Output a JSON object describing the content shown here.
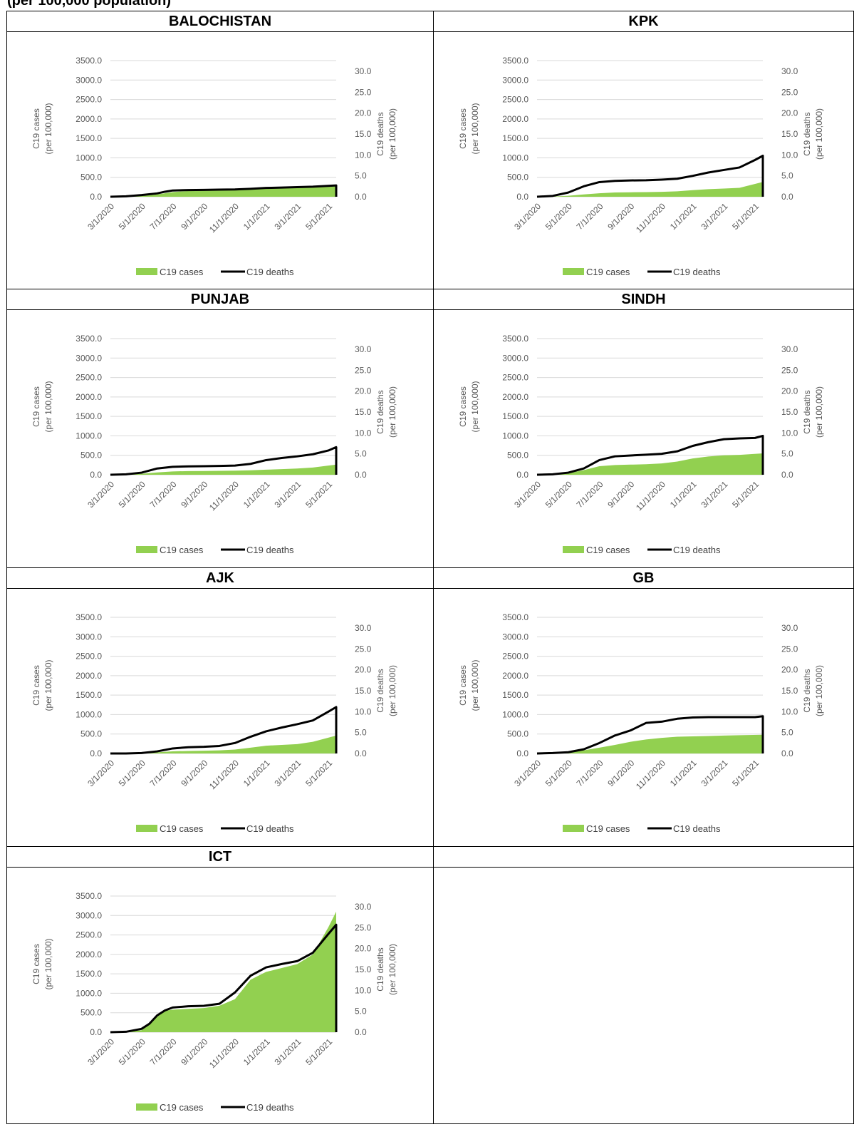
{
  "caption": "(per 100,000 population)",
  "colors": {
    "cases": "#92d050",
    "deaths": "#000000",
    "grid": "#d9d9d9"
  },
  "chart_data": [
    {
      "type": "area",
      "title": "BALOCHISTAN",
      "x_tick_labels": [
        "3/1/2020",
        "5/1/2020",
        "7/1/2020",
        "9/1/2020",
        "11/1/2020",
        "1/1/2021",
        "3/1/2021",
        "5/1/2021"
      ],
      "y_left": {
        "label": [
          "C19 cases",
          "(per 100,000)"
        ],
        "ticks": [
          "0.0",
          "500.0",
          "1000.0",
          "1500.0",
          "2000.0",
          "2500.0",
          "3000.0",
          "3500.0"
        ],
        "range": [
          0,
          3500
        ]
      },
      "y_right": {
        "label": [
          "C19 deaths",
          "(per 100,000)"
        ],
        "ticks": [
          "0.0",
          "5.0",
          "10.0",
          "15.0",
          "20.0",
          "25.0",
          "30.0"
        ],
        "range": [
          0,
          30
        ]
      },
      "legend": [
        "C19 cases",
        "C19 deaths"
      ],
      "series": [
        {
          "name": "C19 cases",
          "axis": "left",
          "x": [
            0,
            1,
            2,
            3,
            4,
            5,
            6,
            7,
            8,
            9,
            10,
            11,
            12,
            13,
            14.5
          ],
          "values": [
            0,
            5,
            20,
            60,
            120,
            150,
            160,
            165,
            175,
            190,
            210,
            225,
            240,
            265,
            300
          ]
        },
        {
          "name": "C19 deaths",
          "axis": "right",
          "x": [
            0,
            1,
            2,
            3,
            3.5,
            4,
            5,
            6,
            7,
            8,
            9,
            10,
            11,
            12,
            13,
            14.5
          ],
          "values": [
            0,
            0.1,
            0.4,
            0.8,
            1.2,
            1.5,
            1.6,
            1.65,
            1.7,
            1.75,
            1.9,
            2.1,
            2.2,
            2.3,
            2.4,
            2.7
          ]
        }
      ]
    },
    {
      "type": "area",
      "title": "KPK",
      "x_tick_labels": [
        "3/1/2020",
        "5/1/2020",
        "7/1/2020",
        "9/1/2020",
        "11/1/2020",
        "1/1/2021",
        "3/1/2021",
        "5/1/2021"
      ],
      "y_left": {
        "label": [
          "C19 cases",
          "(per 100,000)"
        ],
        "ticks": [
          "0.0",
          "500.0",
          "1000.0",
          "1500.0",
          "2000.0",
          "2500.0",
          "3000.0",
          "3500.0"
        ],
        "range": [
          0,
          3500
        ]
      },
      "y_right": {
        "label": [
          "C19 deaths",
          "(per 100,000)"
        ],
        "ticks": [
          "0.0",
          "5.0",
          "10.0",
          "15.0",
          "20.0",
          "25.0",
          "30.0"
        ],
        "range": [
          0,
          30
        ]
      },
      "legend": [
        "C19 cases",
        "C19 deaths"
      ],
      "series": [
        {
          "name": "C19 cases",
          "axis": "left",
          "x": [
            0,
            1,
            2,
            3,
            4,
            5,
            6,
            7,
            8,
            9,
            10,
            11,
            12,
            13,
            14.5
          ],
          "values": [
            0,
            5,
            25,
            60,
            90,
            110,
            115,
            120,
            125,
            140,
            170,
            195,
            210,
            230,
            380
          ]
        },
        {
          "name": "C19 deaths",
          "axis": "right",
          "x": [
            0,
            1,
            2,
            3,
            4,
            5,
            6,
            7,
            8,
            9,
            10,
            11,
            12,
            13,
            14,
            14.5
          ],
          "values": [
            0,
            0.2,
            1.0,
            2.5,
            3.5,
            3.8,
            3.9,
            3.95,
            4.1,
            4.3,
            5.0,
            5.8,
            6.4,
            7.0,
            8.8,
            9.8
          ]
        }
      ]
    },
    {
      "type": "area",
      "title": "PUNJAB",
      "x_tick_labels": [
        "3/1/2020",
        "5/1/2020",
        "7/1/2020",
        "9/1/2020",
        "11/1/2020",
        "1/1/2021",
        "3/1/2021",
        "5/1/2021"
      ],
      "y_left": {
        "label": [
          "C19 cases",
          "(per 100,000)"
        ],
        "ticks": [
          "0.0",
          "500.0",
          "1000.0",
          "1500.0",
          "2000.0",
          "2500.0",
          "3000.0",
          "3500.0"
        ],
        "range": [
          0,
          3500
        ]
      },
      "y_right": {
        "label": [
          "C19 deaths",
          "(per 100,000)"
        ],
        "ticks": [
          "0.0",
          "5.0",
          "10.0",
          "15.0",
          "20.0",
          "25.0",
          "30.0"
        ],
        "range": [
          0,
          30
        ]
      },
      "legend": [
        "C19 cases",
        "C19 deaths"
      ],
      "series": [
        {
          "name": "C19 cases",
          "axis": "left",
          "x": [
            0,
            1,
            2,
            3,
            4,
            5,
            6,
            7,
            8,
            9,
            10,
            11,
            12,
            13,
            14.5
          ],
          "values": [
            0,
            5,
            25,
            60,
            85,
            95,
            97,
            100,
            105,
            115,
            130,
            145,
            160,
            185,
            260
          ]
        },
        {
          "name": "C19 deaths",
          "axis": "right",
          "x": [
            0,
            1,
            2,
            3,
            4,
            5,
            6,
            7,
            8,
            9,
            10,
            11,
            12,
            13,
            14,
            14.5
          ],
          "values": [
            0,
            0.1,
            0.5,
            1.5,
            1.9,
            2.0,
            2.05,
            2.1,
            2.2,
            2.6,
            3.5,
            4.0,
            4.4,
            4.9,
            5.8,
            6.6
          ]
        }
      ]
    },
    {
      "type": "area",
      "title": "SINDH",
      "x_tick_labels": [
        "3/1/2020",
        "5/1/2020",
        "7/1/2020",
        "9/1/2020",
        "11/1/2020",
        "1/1/2021",
        "3/1/2021",
        "5/1/2021"
      ],
      "y_left": {
        "label": [
          "C19 cases",
          "(per 100,000)"
        ],
        "ticks": [
          "0.0",
          "500.0",
          "1000.0",
          "1500.0",
          "2000.0",
          "2500.0",
          "3000.0",
          "3500.0"
        ],
        "range": [
          0,
          3500
        ]
      },
      "y_right": {
        "label": [
          "C19 deaths",
          "(per 100,000)"
        ],
        "ticks": [
          "0.0",
          "5.0",
          "10.0",
          "15.0",
          "20.0",
          "25.0",
          "30.0"
        ],
        "range": [
          0,
          30
        ]
      },
      "legend": [
        "C19 cases",
        "C19 deaths"
      ],
      "series": [
        {
          "name": "C19 cases",
          "axis": "left",
          "x": [
            0,
            1,
            2,
            3,
            4,
            5,
            6,
            7,
            8,
            9,
            10,
            11,
            12,
            13,
            14.5
          ],
          "values": [
            0,
            10,
            40,
            120,
            220,
            250,
            260,
            270,
            290,
            340,
            420,
            470,
            500,
            510,
            550
          ]
        },
        {
          "name": "C19 deaths",
          "axis": "right",
          "x": [
            0,
            1,
            2,
            3,
            4,
            5,
            6,
            7,
            8,
            9,
            10,
            11,
            12,
            13,
            14,
            14.5
          ],
          "values": [
            0,
            0.1,
            0.5,
            1.5,
            3.5,
            4.4,
            4.6,
            4.8,
            5.0,
            5.6,
            6.9,
            7.8,
            8.5,
            8.7,
            8.8,
            9.3
          ]
        }
      ]
    },
    {
      "type": "area",
      "title": "AJK",
      "x_tick_labels": [
        "3/1/2020",
        "5/1/2020",
        "7/1/2020",
        "9/1/2020",
        "11/1/2020",
        "1/1/2021",
        "3/1/2021",
        "5/1/2021"
      ],
      "y_left": {
        "label": [
          "C19 cases",
          "(per 100,000)"
        ],
        "ticks": [
          "0.0",
          "500.0",
          "1000.0",
          "1500.0",
          "2000.0",
          "2500.0",
          "3000.0",
          "3500.0"
        ],
        "range": [
          0,
          3500
        ]
      },
      "y_right": {
        "label": [
          "C19 deaths",
          "(per 100,000)"
        ],
        "ticks": [
          "0.0",
          "5.0",
          "10.0",
          "15.0",
          "20.0",
          "25.0",
          "30.0"
        ],
        "range": [
          0,
          30
        ]
      },
      "legend": [
        "C19 cases",
        "C19 deaths"
      ],
      "series": [
        {
          "name": "C19 cases",
          "axis": "left",
          "x": [
            0,
            1,
            2,
            3,
            4,
            5,
            6,
            7,
            8,
            9,
            10,
            11,
            12,
            13,
            14.5
          ],
          "values": [
            0,
            2,
            10,
            30,
            55,
            65,
            70,
            80,
            100,
            150,
            200,
            220,
            240,
            300,
            460
          ]
        },
        {
          "name": "C19 deaths",
          "axis": "right",
          "x": [
            0,
            1,
            2,
            3,
            4,
            5,
            6,
            7,
            8,
            9,
            10,
            11,
            12,
            13,
            14,
            14.5
          ],
          "values": [
            0,
            0,
            0.1,
            0.5,
            1.2,
            1.5,
            1.6,
            1.8,
            2.5,
            4.0,
            5.3,
            6.2,
            7.0,
            7.9,
            10.0,
            11.1
          ]
        }
      ]
    },
    {
      "type": "area",
      "title": "GB",
      "x_tick_labels": [
        "3/1/2020",
        "5/1/2020",
        "7/1/2020",
        "9/1/2020",
        "11/1/2020",
        "1/1/2021",
        "3/1/2021",
        "5/1/2021"
      ],
      "y_left": {
        "label": [
          "C19 cases",
          "(per 100,000)"
        ],
        "ticks": [
          "0.0",
          "500.0",
          "1000.0",
          "1500.0",
          "2000.0",
          "2500.0",
          "3000.0",
          "3500.0"
        ],
        "range": [
          0,
          3500
        ]
      },
      "y_right": {
        "label": [
          "C19 deaths",
          "(per 100,000)"
        ],
        "ticks": [
          "0.0",
          "5.0",
          "10.0",
          "15.0",
          "20.0",
          "25.0",
          "30.0"
        ],
        "range": [
          0,
          30
        ]
      },
      "legend": [
        "C19 cases",
        "C19 deaths"
      ],
      "series": [
        {
          "name": "C19 cases",
          "axis": "left",
          "x": [
            0,
            1,
            2,
            3,
            4,
            5,
            6,
            7,
            8,
            9,
            10,
            11,
            12,
            13,
            14.5
          ],
          "values": [
            0,
            10,
            30,
            80,
            150,
            220,
            300,
            360,
            400,
            430,
            440,
            450,
            460,
            470,
            480
          ]
        },
        {
          "name": "C19 deaths",
          "axis": "right",
          "x": [
            0,
            1,
            2,
            3,
            4,
            5,
            6,
            7,
            8,
            9,
            10,
            11,
            12,
            13,
            14,
            14.5
          ],
          "values": [
            0,
            0.1,
            0.3,
            1.0,
            2.5,
            4.3,
            5.5,
            7.3,
            7.6,
            8.3,
            8.6,
            8.7,
            8.7,
            8.7,
            8.7,
            8.9
          ]
        }
      ]
    },
    {
      "type": "area",
      "title": "ICT",
      "x_tick_labels": [
        "3/1/2020",
        "5/1/2020",
        "7/1/2020",
        "9/1/2020",
        "11/1/2020",
        "1/1/2021",
        "3/1/2021",
        "5/1/2021"
      ],
      "y_left": {
        "label": [
          "C19 cases",
          "(per 100,000)"
        ],
        "ticks": [
          "0.0",
          "500.0",
          "1000.0",
          "1500.0",
          "2000.0",
          "2500.0",
          "3000.0",
          "3500.0"
        ],
        "range": [
          0,
          3500
        ]
      },
      "y_right": {
        "label": [
          "C19 deaths",
          "(per 100,000)"
        ],
        "ticks": [
          "0.0",
          "5.0",
          "10.0",
          "15.0",
          "20.0",
          "25.0",
          "30.0"
        ],
        "range": [
          0,
          30
        ]
      },
      "legend": [
        "C19 cases",
        "C19 deaths"
      ],
      "series": [
        {
          "name": "C19 cases",
          "axis": "left",
          "x": [
            0,
            1,
            2,
            2.5,
            3,
            3.5,
            4,
            5,
            6,
            7,
            8,
            9,
            10,
            11,
            12,
            13,
            14,
            14.5
          ],
          "values": [
            0,
            5,
            50,
            200,
            450,
            550,
            580,
            600,
            620,
            680,
            850,
            1350,
            1550,
            1650,
            1750,
            2000,
            2700,
            3100
          ]
        },
        {
          "name": "C19 deaths",
          "axis": "right",
          "x": [
            0,
            1,
            2,
            2.5,
            3,
            3.5,
            4,
            5,
            6,
            7,
            8,
            9,
            10,
            11,
            12,
            13,
            14,
            14.5
          ],
          "values": [
            0,
            0.1,
            0.8,
            2.0,
            4.0,
            5.2,
            5.9,
            6.2,
            6.3,
            6.8,
            9.5,
            13.5,
            15.5,
            16.3,
            17.0,
            19.0,
            23.5,
            25.7
          ]
        }
      ]
    }
  ]
}
